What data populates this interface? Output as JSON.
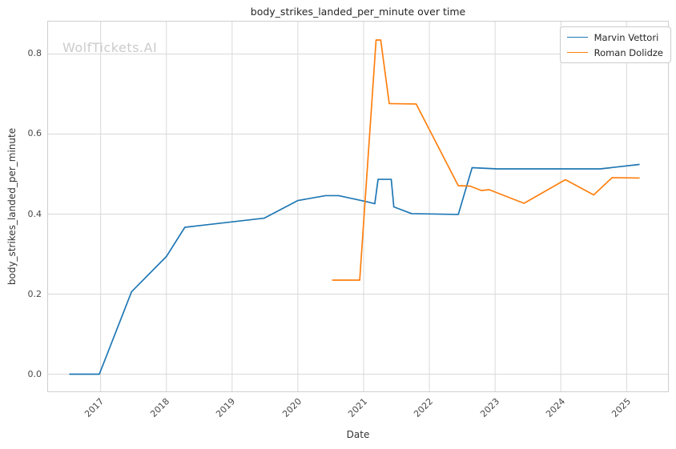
{
  "watermark": "WolfTickets.AI",
  "colors": {
    "series_blue": "#1f77b4",
    "series_orange": "#ff7f0e",
    "grid": "#d9d9d9",
    "spine": "#cfcfcf",
    "tick_text": "#484848",
    "title_text": "#262626",
    "watermark_text": "#cbcbcb"
  },
  "chart_data": {
    "type": "line",
    "title": "body_strikes_landed_per_minute over time",
    "xlabel": "Date",
    "ylabel": "body_strikes_landed_per_minute",
    "xlim": [
      2016.2,
      2025.63
    ],
    "ylim": [
      -0.043,
      0.881
    ],
    "x_ticks": [
      2017,
      2018,
      2019,
      2020,
      2021,
      2022,
      2023,
      2024,
      2025
    ],
    "y_ticks": [
      0.0,
      0.2,
      0.4,
      0.6,
      0.8
    ],
    "grid": true,
    "legend_position": "upper right",
    "series": [
      {
        "name": "Marvin Vettori",
        "color": "#1f77b4",
        "points": [
          [
            2016.53,
            0.0
          ],
          [
            2016.98,
            0.0
          ],
          [
            2017.47,
            0.206
          ],
          [
            2018.0,
            0.294
          ],
          [
            2018.28,
            0.367
          ],
          [
            2019.49,
            0.39
          ],
          [
            2020.0,
            0.434
          ],
          [
            2020.42,
            0.446
          ],
          [
            2020.62,
            0.446
          ],
          [
            2021.05,
            0.431
          ],
          [
            2021.17,
            0.426
          ],
          [
            2021.22,
            0.487
          ],
          [
            2021.42,
            0.487
          ],
          [
            2021.46,
            0.418
          ],
          [
            2021.73,
            0.401
          ],
          [
            2022.44,
            0.399
          ],
          [
            2022.65,
            0.516
          ],
          [
            2023.03,
            0.513
          ],
          [
            2024.6,
            0.513
          ],
          [
            2025.19,
            0.524
          ]
        ]
      },
      {
        "name": "Roman Dolidze",
        "color": "#ff7f0e",
        "points": [
          [
            2020.53,
            0.235
          ],
          [
            2020.94,
            0.235
          ],
          [
            2021.19,
            0.835
          ],
          [
            2021.26,
            0.835
          ],
          [
            2021.39,
            0.676
          ],
          [
            2021.8,
            0.675
          ],
          [
            2022.44,
            0.471
          ],
          [
            2022.62,
            0.47
          ],
          [
            2022.79,
            0.459
          ],
          [
            2022.91,
            0.461
          ],
          [
            2023.44,
            0.427
          ],
          [
            2024.07,
            0.486
          ],
          [
            2024.5,
            0.448
          ],
          [
            2024.78,
            0.491
          ],
          [
            2025.19,
            0.49
          ]
        ]
      }
    ]
  }
}
